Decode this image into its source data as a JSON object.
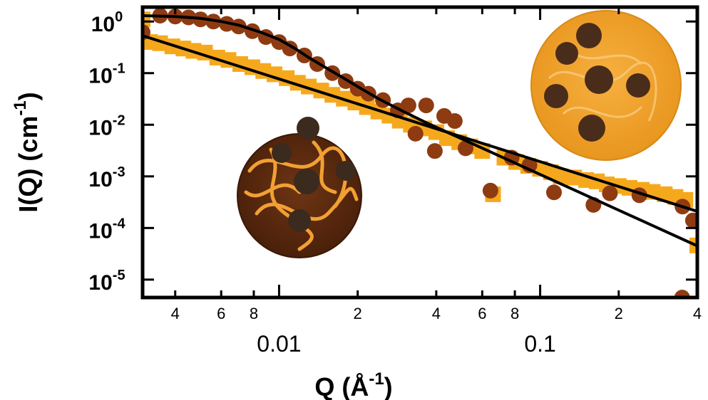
{
  "chart_data": {
    "type": "scatter",
    "xscale": "log",
    "yscale": "log",
    "xlabel": {
      "text": "Q (Å",
      "exponent": "-1",
      "close": ")"
    },
    "ylabel": {
      "text": "I(Q) (cm",
      "exponent": "-1",
      "close": ")"
    },
    "xlim": [
      0.003,
      0.4
    ],
    "ylim": [
      4.5e-06,
      1.9
    ],
    "xticks": [
      {
        "value": 0.004,
        "label": "4"
      },
      {
        "value": 0.006,
        "label": "6"
      },
      {
        "value": 0.008,
        "label": "8"
      },
      0.01,
      {
        "value": 0.02,
        "label": "2"
      },
      {
        "value": 0.04,
        "label": "4"
      },
      {
        "value": 0.06,
        "label": "6"
      },
      {
        "value": 0.08,
        "label": "8"
      },
      0.1,
      {
        "value": 0.2,
        "label": "2"
      },
      {
        "value": 0.4,
        "label": "4"
      }
    ],
    "yticks": [
      {
        "value": 1,
        "label": "10",
        "exponent": "0"
      },
      {
        "value": 0.1,
        "label": "10",
        "exponent": "-1"
      },
      {
        "value": 0.01,
        "label": "10",
        "exponent": "-2"
      },
      {
        "value": 0.001,
        "label": "10",
        "exponent": "-3"
      },
      {
        "value": 0.0001,
        "label": "10",
        "exponent": "-4"
      },
      {
        "value": 1e-05,
        "label": "10",
        "exponent": "-5"
      }
    ],
    "series": [
      {
        "type": "scatter",
        "marker": "square",
        "color": "#f6a81c",
        "x": [
          0.003,
          0.0032,
          0.0035,
          0.0039,
          0.0043,
          0.0047,
          0.0052,
          0.0058,
          0.0064,
          0.0071,
          0.0079,
          0.0087,
          0.0096,
          0.0107,
          0.0118,
          0.013,
          0.0145,
          0.016,
          0.0177,
          0.0196,
          0.0217,
          0.024,
          0.0265,
          0.029,
          0.032,
          0.036,
          0.04,
          0.044,
          0.049,
          0.054,
          0.06,
          0.066,
          0.073,
          0.081,
          0.09,
          0.1,
          0.11,
          0.12,
          0.135,
          0.15,
          0.165,
          0.18,
          0.2,
          0.22,
          0.245,
          0.27,
          0.3,
          0.33,
          0.36,
          0.4
        ],
        "values": [
          1.1,
          0.4,
          0.38,
          0.33,
          0.3,
          0.27,
          0.25,
          0.2,
          0.18,
          0.15,
          0.13,
          0.11,
          0.095,
          0.08,
          0.065,
          0.055,
          0.046,
          0.038,
          0.032,
          0.027,
          0.022,
          0.018,
          0.015,
          0.012,
          0.01,
          0.0085,
          0.0072,
          0.0055,
          0.0046,
          0.0038,
          0.0031,
          0.00045,
          0.0023,
          0.0019,
          0.0016,
          0.0014,
          0.0012,
          0.001,
          0.00095,
          0.00085,
          0.0008,
          0.0007,
          0.00065,
          0.0006,
          0.00055,
          0.0005,
          0.00045,
          0.0004,
          0.00035,
          4.6e-05
        ]
      },
      {
        "type": "scatter",
        "marker": "circle",
        "color": "#8e3b12",
        "x": [
          0.003,
          0.0035,
          0.004,
          0.0045,
          0.005,
          0.0056,
          0.0063,
          0.007,
          0.0079,
          0.0089,
          0.01,
          0.011,
          0.0125,
          0.014,
          0.016,
          0.018,
          0.02,
          0.022,
          0.025,
          0.0285,
          0.0313,
          0.0333,
          0.0366,
          0.0395,
          0.0429,
          0.0471,
          0.0518,
          0.0645,
          0.0778,
          0.091,
          0.113,
          0.16,
          0.185,
          0.24,
          0.35,
          0.351,
          0.385
        ],
        "values": [
          0.62,
          1.3,
          1.25,
          1.2,
          1.1,
          1.0,
          0.9,
          0.8,
          0.65,
          0.5,
          0.4,
          0.3,
          0.22,
          0.15,
          0.1,
          0.07,
          0.05,
          0.04,
          0.03,
          0.019,
          0.0237,
          0.0067,
          0.0237,
          0.0031,
          0.0148,
          0.0118,
          0.0035,
          0.00053,
          0.0023,
          0.00165,
          0.00049,
          0.00028,
          0.00047,
          0.00043,
          4.5e-06,
          0.00026,
          0.00014
        ]
      },
      {
        "type": "line",
        "color": "#000000",
        "x": [
          0.003,
          0.004,
          0.005,
          0.006,
          0.007,
          0.0085,
          0.01,
          0.0115,
          0.013,
          0.015,
          0.017,
          0.02,
          0.024,
          0.03,
          0.0366,
          0.4
        ],
        "values": [
          1.3,
          1.25,
          1.15,
          1.0,
          0.85,
          0.62,
          0.45,
          0.3,
          0.2,
          0.13,
          0.09,
          0.055,
          0.032,
          0.018,
          0.011,
          4.5e-05
        ]
      },
      {
        "type": "line",
        "color": "#000000",
        "x": [
          0.003,
          0.4
        ],
        "values": [
          0.53,
          0.00021
        ]
      }
    ]
  }
}
